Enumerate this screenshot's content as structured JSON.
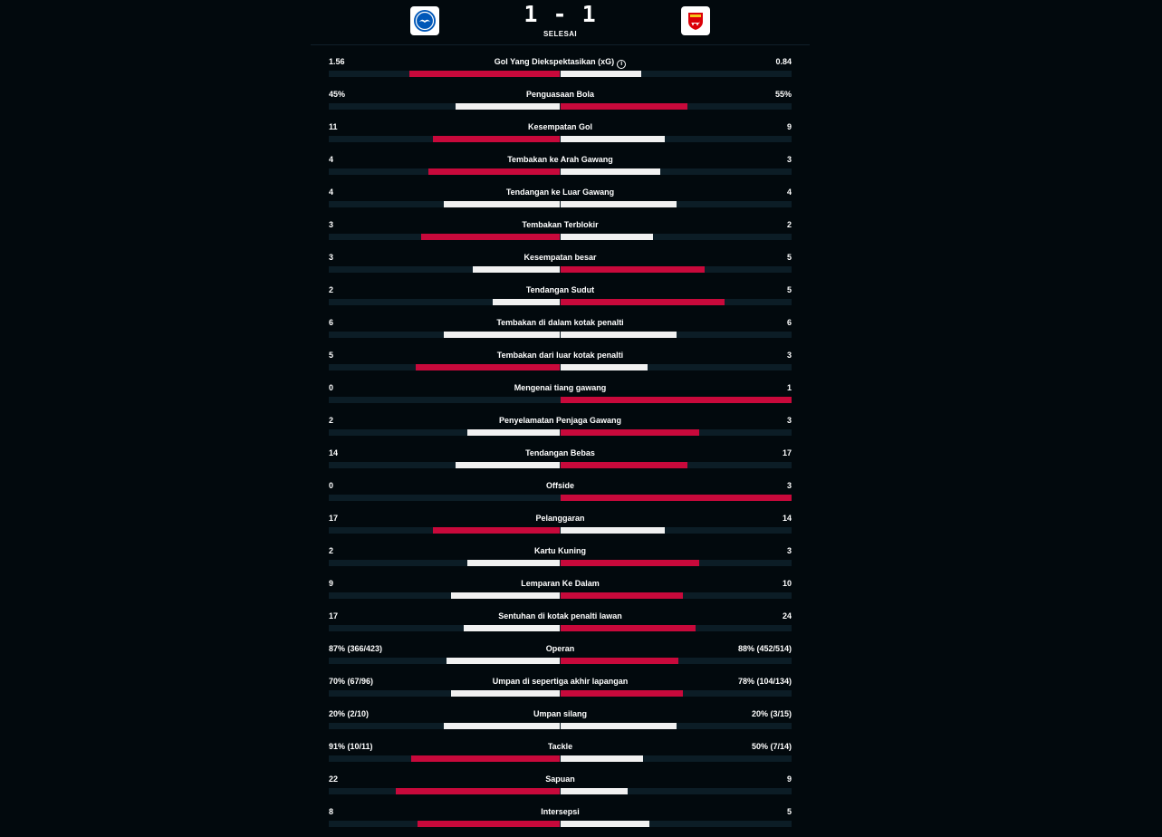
{
  "match": {
    "score": "1 - 1",
    "status": "SELESAI",
    "home_crest_icon": "brighton-crest-icon",
    "away_crest_icon": "arsenal-crest-icon"
  },
  "colors": {
    "leader": "#c8093b",
    "other": "#f1f1f1",
    "track": "#0c1d26",
    "background": "#02090d"
  },
  "stats": [
    {
      "label": "Gol Yang Diekspektasikan (xG)",
      "home": "1.56",
      "away": "0.84",
      "home_frac": 0.65,
      "away_frac": 0.35,
      "info": true
    },
    {
      "label": "Penguasaan Bola",
      "home": "45%",
      "away": "55%",
      "home_frac": 0.45,
      "away_frac": 0.55
    },
    {
      "label": "Kesempatan Gol",
      "home": "11",
      "away": "9",
      "home_frac": 0.55,
      "away_frac": 0.45
    },
    {
      "label": "Tembakan ke Arah Gawang",
      "home": "4",
      "away": "3",
      "home_frac": 0.57,
      "away_frac": 0.43
    },
    {
      "label": "Tendangan ke Luar Gawang",
      "home": "4",
      "away": "4",
      "home_frac": 0.5,
      "away_frac": 0.5
    },
    {
      "label": "Tembakan Terblokir",
      "home": "3",
      "away": "2",
      "home_frac": 0.6,
      "away_frac": 0.4
    },
    {
      "label": "Kesempatan besar",
      "home": "3",
      "away": "5",
      "home_frac": 0.375,
      "away_frac": 0.625
    },
    {
      "label": "Tendangan Sudut",
      "home": "2",
      "away": "5",
      "home_frac": 0.29,
      "away_frac": 0.71
    },
    {
      "label": "Tembakan di dalam kotak penalti",
      "home": "6",
      "away": "6",
      "home_frac": 0.5,
      "away_frac": 0.5
    },
    {
      "label": "Tembakan dari luar kotak penalti",
      "home": "5",
      "away": "3",
      "home_frac": 0.625,
      "away_frac": 0.375
    },
    {
      "label": "Mengenai tiang gawang",
      "home": "0",
      "away": "1",
      "home_frac": 0,
      "away_frac": 1
    },
    {
      "label": "Penyelamatan Penjaga Gawang",
      "home": "2",
      "away": "3",
      "home_frac": 0.4,
      "away_frac": 0.6
    },
    {
      "label": "Tendangan Bebas",
      "home": "14",
      "away": "17",
      "home_frac": 0.45,
      "away_frac": 0.55
    },
    {
      "label": "Offside",
      "home": "0",
      "away": "3",
      "home_frac": 0,
      "away_frac": 1
    },
    {
      "label": "Pelanggaran",
      "home": "17",
      "away": "14",
      "home_frac": 0.55,
      "away_frac": 0.45
    },
    {
      "label": "Kartu Kuning",
      "home": "2",
      "away": "3",
      "home_frac": 0.4,
      "away_frac": 0.6
    },
    {
      "label": "Lemparan Ke Dalam",
      "home": "9",
      "away": "10",
      "home_frac": 0.47,
      "away_frac": 0.53
    },
    {
      "label": "Sentuhan di kotak penalti lawan",
      "home": "17",
      "away": "24",
      "home_frac": 0.415,
      "away_frac": 0.585
    },
    {
      "label": "Operan",
      "home": "87% (366/423)",
      "away": "88% (452/514)",
      "home_frac": 0.49,
      "away_frac": 0.51
    },
    {
      "label": "Umpan di sepertiga akhir lapangan",
      "home": "70% (67/96)",
      "away": "78% (104/134)",
      "home_frac": 0.47,
      "away_frac": 0.53
    },
    {
      "label": "Umpan silang",
      "home": "20% (2/10)",
      "away": "20% (3/15)",
      "home_frac": 0.5,
      "away_frac": 0.5
    },
    {
      "label": "Tackle",
      "home": "91% (10/11)",
      "away": "50% (7/14)",
      "home_frac": 0.645,
      "away_frac": 0.355
    },
    {
      "label": "Sapuan",
      "home": "22",
      "away": "9",
      "home_frac": 0.71,
      "away_frac": 0.29
    },
    {
      "label": "Intersepsi",
      "home": "8",
      "away": "5",
      "home_frac": 0.615,
      "away_frac": 0.385
    }
  ]
}
